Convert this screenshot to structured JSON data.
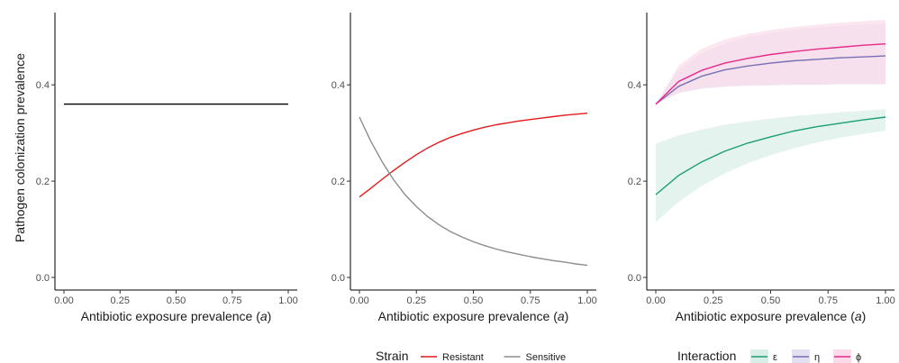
{
  "ylabel": "Pathogen colonization prevalence",
  "chart_data": [
    {
      "type": "line",
      "xlabel_prefix": "Antibiotic exposure prevalence (",
      "xlabel_var": "a",
      "xlabel_suffix": ")",
      "xlim": [
        0,
        1
      ],
      "ylim": [
        0,
        0.55
      ],
      "x_ticks": [
        "0.00",
        "0.25",
        "0.50",
        "0.75",
        "1.00"
      ],
      "y_ticks": [
        "0.0",
        "0.2",
        "0.4"
      ],
      "grid": false,
      "series": [
        {
          "color": "#000000",
          "x": [
            0,
            1
          ],
          "y": [
            0.36,
            0.36
          ]
        }
      ]
    },
    {
      "type": "line",
      "xlabel_prefix": "Antibiotic exposure prevalence (",
      "xlabel_var": "a",
      "xlabel_suffix": ")",
      "xlim": [
        0,
        1
      ],
      "ylim": [
        0,
        0.55
      ],
      "x_ticks": [
        "0.00",
        "0.25",
        "0.50",
        "0.75",
        "1.00"
      ],
      "y_ticks": [
        "0.0",
        "0.2",
        "0.4"
      ],
      "grid": false,
      "legend": {
        "title": "Strain",
        "position": "bottom"
      },
      "series": [
        {
          "name": "Resistant",
          "color": "#e31a1c",
          "x": [
            0,
            0.05,
            0.1,
            0.15,
            0.2,
            0.25,
            0.3,
            0.35,
            0.4,
            0.45,
            0.5,
            0.55,
            0.6,
            0.65,
            0.7,
            0.75,
            0.8,
            0.85,
            0.9,
            0.95,
            1
          ],
          "y": [
            0.167,
            0.185,
            0.204,
            0.222,
            0.239,
            0.255,
            0.269,
            0.281,
            0.291,
            0.299,
            0.306,
            0.312,
            0.317,
            0.321,
            0.325,
            0.328,
            0.331,
            0.334,
            0.337,
            0.339,
            0.341
          ]
        },
        {
          "name": "Sensitive",
          "color": "#8c8c8c",
          "x": [
            0,
            0.05,
            0.1,
            0.15,
            0.2,
            0.25,
            0.3,
            0.35,
            0.4,
            0.45,
            0.5,
            0.55,
            0.6,
            0.65,
            0.7,
            0.75,
            0.8,
            0.85,
            0.9,
            0.95,
            1
          ],
          "y": [
            0.333,
            0.283,
            0.24,
            0.203,
            0.172,
            0.147,
            0.126,
            0.109,
            0.095,
            0.084,
            0.074,
            0.066,
            0.059,
            0.053,
            0.048,
            0.043,
            0.039,
            0.035,
            0.032,
            0.028,
            0.025
          ]
        }
      ]
    },
    {
      "type": "area",
      "xlabel_prefix": "Antibiotic exposure prevalence (",
      "xlabel_var": "a",
      "xlabel_suffix": ")",
      "xlim": [
        0,
        1
      ],
      "ylim": [
        0,
        0.55
      ],
      "x_ticks": [
        "0.00",
        "0.25",
        "0.50",
        "0.75",
        "1.00"
      ],
      "y_ticks": [
        "0.0",
        "0.2",
        "0.4"
      ],
      "grid": false,
      "legend": {
        "title": "Interaction",
        "position": "bottom"
      },
      "series": [
        {
          "name": "ε",
          "color": "#1b9e77",
          "fill": "#d9eee6",
          "x": [
            0,
            0.1,
            0.2,
            0.3,
            0.4,
            0.5,
            0.6,
            0.7,
            0.8,
            0.9,
            1
          ],
          "y": [
            0.172,
            0.212,
            0.24,
            0.262,
            0.279,
            0.292,
            0.304,
            0.313,
            0.32,
            0.327,
            0.333
          ],
          "lower": [
            0.115,
            0.157,
            0.19,
            0.216,
            0.237,
            0.254,
            0.268,
            0.28,
            0.29,
            0.298,
            0.305
          ],
          "upper": [
            0.278,
            0.295,
            0.307,
            0.317,
            0.324,
            0.33,
            0.335,
            0.339,
            0.343,
            0.346,
            0.349
          ]
        },
        {
          "name": "η",
          "color": "#7570b3",
          "fill": "#e3e1f1",
          "x": [
            0,
            0.1,
            0.2,
            0.3,
            0.4,
            0.5,
            0.6,
            0.7,
            0.8,
            0.9,
            1
          ],
          "y": [
            0.36,
            0.397,
            0.418,
            0.431,
            0.439,
            0.445,
            0.45,
            0.453,
            0.456,
            0.458,
            0.46
          ],
          "lower": [
            0.36,
            0.383,
            0.392,
            0.396,
            0.398,
            0.399,
            0.4,
            0.4,
            0.401,
            0.401,
            0.401
          ],
          "upper": [
            0.36,
            0.432,
            0.466,
            0.486,
            0.499,
            0.508,
            0.514,
            0.519,
            0.522,
            0.525,
            0.527
          ]
        },
        {
          "name": "ϕ",
          "color": "#e7298a",
          "fill": "#fbdbe9",
          "x": [
            0,
            0.1,
            0.2,
            0.3,
            0.4,
            0.5,
            0.6,
            0.7,
            0.8,
            0.9,
            1
          ],
          "y": [
            0.36,
            0.407,
            0.43,
            0.445,
            0.455,
            0.463,
            0.469,
            0.474,
            0.478,
            0.482,
            0.485
          ],
          "lower": [
            0.36,
            0.384,
            0.393,
            0.397,
            0.399,
            0.4,
            0.401,
            0.401,
            0.402,
            0.402,
            0.402
          ],
          "upper": [
            0.36,
            0.44,
            0.475,
            0.494,
            0.506,
            0.514,
            0.52,
            0.525,
            0.529,
            0.532,
            0.535
          ]
        }
      ]
    }
  ]
}
